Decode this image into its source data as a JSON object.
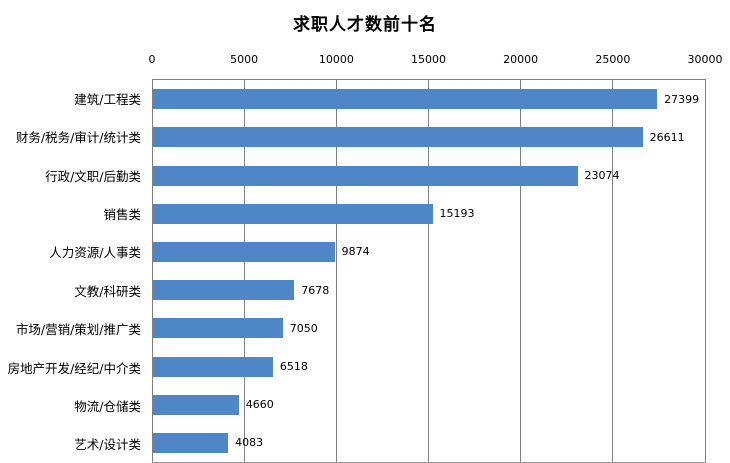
{
  "title": "求职人才数前十名",
  "chart_data": {
    "type": "bar",
    "orientation": "horizontal",
    "title": "求职人才数前十名",
    "categories": [
      "建筑/工程类",
      "财务/税务/审计/统计类",
      "行政/文职/后勤类",
      "销售类",
      "人力资源/人事类",
      "文教/科研类",
      "市场/营销/策划/推广类",
      "房地产开发/经纪/中介类",
      "物流/仓储类",
      "艺术/设计类"
    ],
    "values": [
      27399,
      26611,
      23074,
      15193,
      9874,
      7678,
      7050,
      6518,
      4660,
      4083
    ],
    "data_labels": [
      "27399",
      "26611",
      "23074",
      "15193",
      "9874",
      "7678",
      "7050",
      "6518",
      "4660",
      "4083"
    ],
    "xlim": [
      0,
      30000
    ],
    "x_ticks": [
      "0",
      "5000",
      "10000",
      "15000",
      "20000",
      "25000",
      "30000"
    ],
    "tick_step": 5000,
    "grid": "vertical",
    "legend": "none",
    "axis_position": "top",
    "colors": {
      "bar": "#4e86c8",
      "grid": "#808080",
      "text": "#000000",
      "background": "#ffffff"
    }
  }
}
